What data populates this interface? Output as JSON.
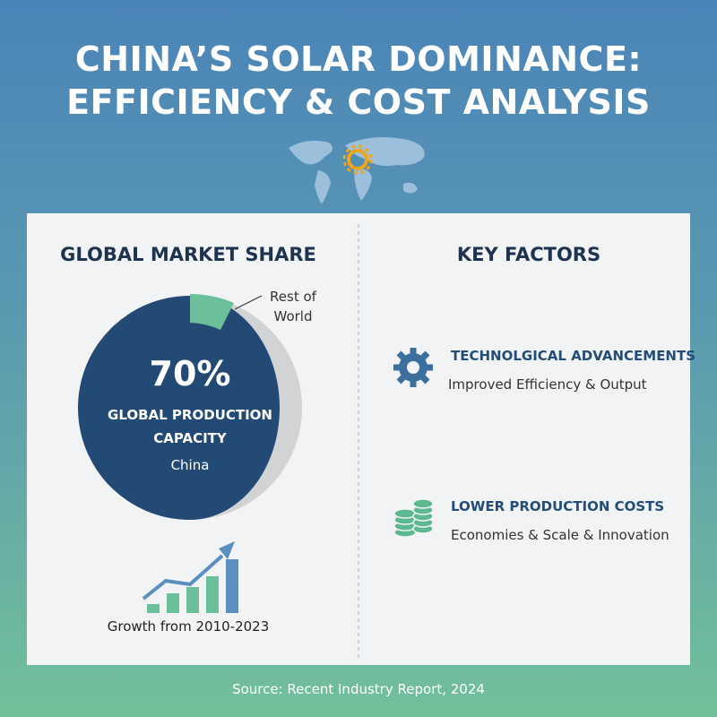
{
  "header": {
    "title_lines": [
      "CHINA’S SOLAR DOMINANCE:",
      "EFFICIENCY & COST ANALYSIS"
    ]
  },
  "market_share": {
    "heading": "GLOBAL MARKET SHARE",
    "rest_label": "Rest of World",
    "big_figure": "70%",
    "figure_caption": "GLOBAL PRODUCTION CAPACITY",
    "china_label": "China",
    "growth_caption": "Growth from 2010-2023"
  },
  "key_factors": {
    "heading": "KEY FACTORS",
    "items": [
      {
        "title": "TECHNOLGICAL ADVANCEMENTS",
        "description": "Improved Efficiency & Output"
      },
      {
        "title": "LOWER PRODUCTION COSTS",
        "description": "Economies & Scale & Innovation"
      }
    ]
  },
  "footer": {
    "source": "Source: Recent Industry Report, 2024"
  }
}
